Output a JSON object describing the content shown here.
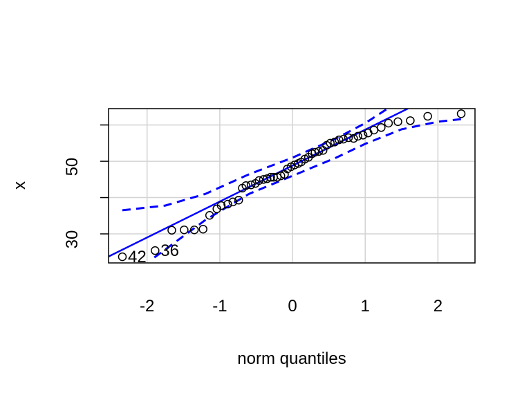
{
  "chart_data": {
    "type": "scatter",
    "xlabel": "norm quantiles",
    "ylabel": "x",
    "xlim": [
      -2.53,
      2.51
    ],
    "ylim": [
      22.0,
      64.5
    ],
    "xticks": [
      -2,
      -1,
      0,
      1,
      2
    ],
    "yticks": [
      30,
      {
        "value": 40,
        "label": null
      },
      50,
      {
        "value": 60,
        "label": null
      }
    ],
    "grid": true,
    "color": "#000000",
    "x": [
      -2.34,
      -1.89,
      -1.66,
      -1.49,
      -1.35,
      -1.23,
      -1.14,
      -1.04,
      -0.98,
      -0.89,
      -0.82,
      -0.74,
      -0.69,
      -0.64,
      -0.57,
      -0.51,
      -0.46,
      -0.4,
      -0.35,
      -0.3,
      -0.26,
      -0.21,
      -0.16,
      -0.11,
      -0.07,
      -0.02,
      0.03,
      0.08,
      0.12,
      0.17,
      0.22,
      0.27,
      0.31,
      0.36,
      0.42,
      0.47,
      0.52,
      0.58,
      0.64,
      0.7,
      0.77,
      0.84,
      0.9,
      0.97,
      1.04,
      1.12,
      1.22,
      1.32,
      1.45,
      1.62,
      1.86,
      2.32
    ],
    "values": [
      23.7,
      25.4,
      31.0,
      31.1,
      31.1,
      31.3,
      35.1,
      36.9,
      37.8,
      38.2,
      38.8,
      39.3,
      42.6,
      43.3,
      43.5,
      43.9,
      44.7,
      45.0,
      45.2,
      45.6,
      45.6,
      45.6,
      46.0,
      46.4,
      47.9,
      48.5,
      49.0,
      49.4,
      49.8,
      50.6,
      51.1,
      52.1,
      52.5,
      52.7,
      53.0,
      54.4,
      55.0,
      55.3,
      55.9,
      56.1,
      56.5,
      56.3,
      56.9,
      57.2,
      57.8,
      58.6,
      59.3,
      60.5,
      60.9,
      61.2,
      62.4,
      63.1
    ],
    "point_labels": [
      "42",
      "36",
      null,
      null,
      null,
      null,
      null,
      null,
      null,
      null,
      null,
      null,
      null,
      null,
      null,
      null,
      null,
      null,
      null,
      null,
      null,
      null,
      null,
      null,
      null,
      null,
      null,
      null,
      null,
      null,
      null,
      null,
      null,
      null,
      null,
      null,
      null,
      null,
      null,
      null,
      null,
      null,
      null,
      null,
      null,
      null,
      null,
      null,
      null,
      null,
      null,
      null
    ],
    "line": {
      "intercept": 48.8,
      "slope": 9.9,
      "color": "#0000ff"
    },
    "envelope": {
      "color": "#0000ff",
      "upper": {
        "x": [
          -2.34,
          -1.75,
          -1.2,
          -0.6,
          0,
          0.6,
          1.0,
          1.3
        ],
        "values": [
          36.5,
          37.8,
          41.0,
          46.4,
          51.0,
          56.3,
          60.5,
          64.4
        ]
      },
      "lower": {
        "x": [
          -1.9,
          -1.2,
          -0.6,
          0,
          0.6,
          1.0,
          1.5,
          2.0,
          2.32
        ],
        "values": [
          23.5,
          33.8,
          41.0,
          46.0,
          51.0,
          54.8,
          58.8,
          60.9,
          61.6
        ]
      }
    }
  }
}
